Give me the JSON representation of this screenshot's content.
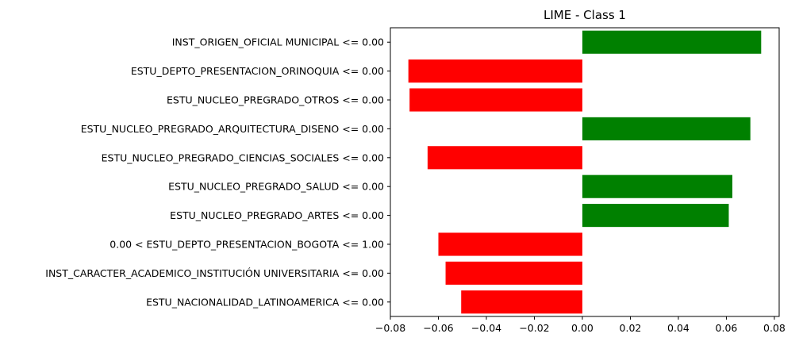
{
  "chart_data": {
    "type": "bar",
    "orientation": "horizontal",
    "title": "LIME - Class 1",
    "xlabel": "",
    "ylabel": "",
    "xlim": [
      -0.08,
      0.082
    ],
    "xticks": [
      -0.08,
      -0.06,
      -0.04,
      -0.02,
      0.0,
      0.02,
      0.04,
      0.06,
      0.08
    ],
    "xtick_labels": [
      "−0.08",
      "−0.06",
      "−0.04",
      "−0.02",
      "0.00",
      "0.02",
      "0.04",
      "0.06",
      "0.08"
    ],
    "grid": false,
    "categories": [
      "INST_ORIGEN_OFICIAL MUNICIPAL <= 0.00",
      "ESTU_DEPTO_PRESENTACION_ORINOQUIA <= 0.00",
      "ESTU_NUCLEO_PREGRADO_OTROS <= 0.00",
      "ESTU_NUCLEO_PREGRADO_ARQUITECTURA_DISENO <= 0.00",
      "ESTU_NUCLEO_PREGRADO_CIENCIAS_SOCIALES <= 0.00",
      "ESTU_NUCLEO_PREGRADO_SALUD <= 0.00",
      "ESTU_NUCLEO_PREGRADO_ARTES <= 0.00",
      "0.00 < ESTU_DEPTO_PRESENTACION_BOGOTA <= 1.00",
      "INST_CARACTER_ACADEMICO_INSTITUCIÓN UNIVERSITARIA <= 0.00",
      "ESTU_NACIONALIDAD_LATINOAMERICA <= 0.00"
    ],
    "values": [
      0.0745,
      -0.0725,
      -0.072,
      0.07,
      -0.0645,
      0.0625,
      0.061,
      -0.06,
      -0.057,
      -0.0505
    ],
    "colors": {
      "positive": "#008000",
      "negative": "#ff0000",
      "axis": "#000000"
    }
  }
}
